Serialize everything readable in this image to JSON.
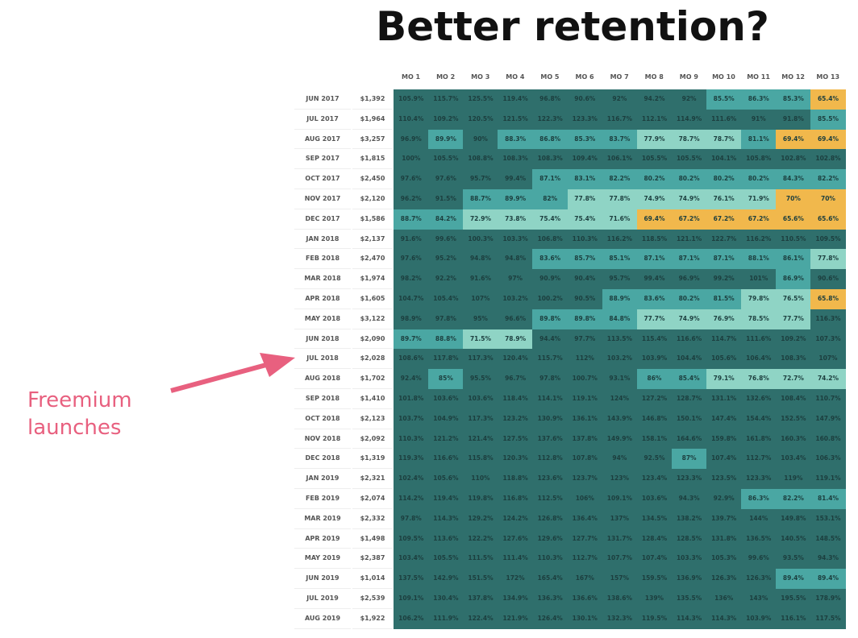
{
  "title": "Better retention?",
  "annotation": {
    "line1": "Freemium",
    "line2": "launches",
    "color": "#e8607f"
  },
  "colors": {
    "high": "#2f6f6c",
    "mid": "#4aa7a3",
    "low": "#8fd4c5",
    "lowest": "#f1b84c"
  },
  "chart_data": {
    "type": "heatmap",
    "title": "Better retention?",
    "columns": [
      "MO 1",
      "MO 2",
      "MO 3",
      "MO 4",
      "MO 5",
      "MO 6",
      "MO 7",
      "MO 8",
      "MO 9",
      "MO 10",
      "MO 11",
      "MO 12",
      "MO 13"
    ],
    "rows": [
      {
        "cohort": "JUN 2017",
        "revenue": "$1,392",
        "values": [
          "105.9%",
          "115.7%",
          "125.5%",
          "119.4%",
          "96.8%",
          "90.6%",
          "92%",
          "94.2%",
          "92%",
          "85.5%",
          "86.3%",
          "85.3%",
          "65.4%"
        ]
      },
      {
        "cohort": "JUL 2017",
        "revenue": "$1,964",
        "values": [
          "110.4%",
          "109.2%",
          "120.5%",
          "121.5%",
          "122.3%",
          "123.3%",
          "116.7%",
          "112.1%",
          "114.9%",
          "111.6%",
          "91%",
          "91.8%",
          "85.5%"
        ]
      },
      {
        "cohort": "AUG 2017",
        "revenue": "$3,257",
        "values": [
          "96.9%",
          "89.9%",
          "90%",
          "88.3%",
          "86.8%",
          "85.3%",
          "83.7%",
          "77.9%",
          "78.7%",
          "78.7%",
          "81.1%",
          "69.4%",
          "69.4%"
        ]
      },
      {
        "cohort": "SEP 2017",
        "revenue": "$1,815",
        "values": [
          "100%",
          "105.5%",
          "108.8%",
          "108.3%",
          "108.3%",
          "109.4%",
          "106.1%",
          "105.5%",
          "105.5%",
          "104.1%",
          "105.8%",
          "102.8%",
          "102.8%"
        ]
      },
      {
        "cohort": "OCT 2017",
        "revenue": "$2,450",
        "values": [
          "97.6%",
          "97.6%",
          "95.7%",
          "99.4%",
          "87.1%",
          "83.1%",
          "82.2%",
          "80.2%",
          "80.2%",
          "80.2%",
          "80.2%",
          "84.3%",
          "82.2%"
        ]
      },
      {
        "cohort": "NOV 2017",
        "revenue": "$2,120",
        "values": [
          "96.2%",
          "91.5%",
          "88.7%",
          "89.9%",
          "82%",
          "77.8%",
          "77.8%",
          "74.9%",
          "74.9%",
          "76.1%",
          "71.9%",
          "70%",
          "70%"
        ]
      },
      {
        "cohort": "DEC 2017",
        "revenue": "$1,586",
        "values": [
          "88.7%",
          "84.2%",
          "72.9%",
          "73.8%",
          "75.4%",
          "75.4%",
          "71.6%",
          "69.4%",
          "67.2%",
          "67.2%",
          "67.2%",
          "65.6%",
          "65.6%"
        ]
      },
      {
        "cohort": "JAN 2018",
        "revenue": "$2,137",
        "values": [
          "91.6%",
          "99.6%",
          "100.3%",
          "103.3%",
          "106.8%",
          "110.3%",
          "116.2%",
          "118.5%",
          "121.1%",
          "122.7%",
          "116.2%",
          "110.5%",
          "109.5%"
        ]
      },
      {
        "cohort": "FEB 2018",
        "revenue": "$2,470",
        "values": [
          "97.6%",
          "95.2%",
          "94.8%",
          "94.8%",
          "83.6%",
          "85.7%",
          "85.1%",
          "87.1%",
          "87.1%",
          "87.1%",
          "88.1%",
          "86.1%",
          "77.8%"
        ]
      },
      {
        "cohort": "MAR 2018",
        "revenue": "$1,974",
        "values": [
          "98.2%",
          "92.2%",
          "91.6%",
          "97%",
          "90.9%",
          "90.4%",
          "95.7%",
          "99.4%",
          "96.9%",
          "99.2%",
          "101%",
          "86.9%",
          "90.6%"
        ]
      },
      {
        "cohort": "APR 2018",
        "revenue": "$1,605",
        "values": [
          "104.7%",
          "105.4%",
          "107%",
          "103.2%",
          "100.2%",
          "90.5%",
          "88.9%",
          "83.6%",
          "80.2%",
          "81.5%",
          "79.8%",
          "76.5%",
          "65.8%"
        ]
      },
      {
        "cohort": "MAY 2018",
        "revenue": "$3,122",
        "values": [
          "98.9%",
          "97.8%",
          "95%",
          "96.6%",
          "89.8%",
          "89.8%",
          "84.8%",
          "77.7%",
          "74.9%",
          "76.9%",
          "78.5%",
          "77.7%",
          "116.3%"
        ]
      },
      {
        "cohort": "JUN 2018",
        "revenue": "$2,090",
        "values": [
          "89.7%",
          "88.8%",
          "71.5%",
          "78.9%",
          "94.4%",
          "97.7%",
          "113.5%",
          "115.4%",
          "116.6%",
          "114.7%",
          "111.6%",
          "109.2%",
          "107.3%"
        ]
      },
      {
        "cohort": "JUL 2018",
        "revenue": "$2,028",
        "values": [
          "108.6%",
          "117.8%",
          "117.3%",
          "120.4%",
          "115.7%",
          "112%",
          "103.2%",
          "103.9%",
          "104.4%",
          "105.6%",
          "106.4%",
          "108.3%",
          "107%"
        ]
      },
      {
        "cohort": "AUG 2018",
        "revenue": "$1,702",
        "values": [
          "92.4%",
          "85%",
          "95.5%",
          "96.7%",
          "97.8%",
          "100.7%",
          "93.1%",
          "86%",
          "85.4%",
          "79.1%",
          "76.8%",
          "72.7%",
          "74.2%"
        ]
      },
      {
        "cohort": "SEP 2018",
        "revenue": "$1,410",
        "values": [
          "101.8%",
          "103.6%",
          "103.6%",
          "118.4%",
          "114.1%",
          "119.1%",
          "124%",
          "127.2%",
          "128.7%",
          "131.1%",
          "132.6%",
          "108.4%",
          "110.7%"
        ]
      },
      {
        "cohort": "OCT 2018",
        "revenue": "$2,123",
        "values": [
          "103.7%",
          "104.9%",
          "117.3%",
          "123.2%",
          "130.9%",
          "136.1%",
          "143.9%",
          "146.8%",
          "150.1%",
          "147.4%",
          "154.4%",
          "152.5%",
          "147.9%"
        ]
      },
      {
        "cohort": "NOV 2018",
        "revenue": "$2,092",
        "values": [
          "110.3%",
          "121.2%",
          "121.4%",
          "127.5%",
          "137.6%",
          "137.8%",
          "149.9%",
          "158.1%",
          "164.6%",
          "159.8%",
          "161.8%",
          "160.3%",
          "160.8%"
        ]
      },
      {
        "cohort": "DEC 2018",
        "revenue": "$1,319",
        "values": [
          "119.3%",
          "116.6%",
          "115.8%",
          "120.3%",
          "112.8%",
          "107.8%",
          "94%",
          "92.5%",
          "87%",
          "107.4%",
          "112.7%",
          "103.4%",
          "106.3%"
        ]
      },
      {
        "cohort": "JAN 2019",
        "revenue": "$2,321",
        "values": [
          "102.4%",
          "105.6%",
          "110%",
          "118.8%",
          "123.6%",
          "123.7%",
          "123%",
          "123.4%",
          "123.3%",
          "123.5%",
          "123.3%",
          "119%",
          "119.1%"
        ]
      },
      {
        "cohort": "FEB 2019",
        "revenue": "$2,074",
        "values": [
          "114.2%",
          "119.4%",
          "119.8%",
          "116.8%",
          "112.5%",
          "106%",
          "109.1%",
          "103.6%",
          "94.3%",
          "92.9%",
          "86.3%",
          "82.2%",
          "81.4%"
        ]
      },
      {
        "cohort": "MAR 2019",
        "revenue": "$2,332",
        "values": [
          "97.8%",
          "114.3%",
          "129.2%",
          "124.2%",
          "126.8%",
          "136.4%",
          "137%",
          "134.5%",
          "138.2%",
          "139.7%",
          "144%",
          "149.8%",
          "153.1%"
        ]
      },
      {
        "cohort": "APR 2019",
        "revenue": "$1,498",
        "values": [
          "109.5%",
          "113.6%",
          "122.2%",
          "127.6%",
          "129.6%",
          "127.7%",
          "131.7%",
          "128.4%",
          "128.5%",
          "131.8%",
          "136.5%",
          "140.5%",
          "148.5%"
        ]
      },
      {
        "cohort": "MAY 2019",
        "revenue": "$2,387",
        "values": [
          "103.4%",
          "105.5%",
          "111.5%",
          "111.4%",
          "110.3%",
          "112.7%",
          "107.7%",
          "107.4%",
          "103.3%",
          "105.3%",
          "99.6%",
          "93.5%",
          "94.3%"
        ]
      },
      {
        "cohort": "JUN 2019",
        "revenue": "$1,014",
        "values": [
          "137.5%",
          "142.9%",
          "151.5%",
          "172%",
          "165.4%",
          "167%",
          "157%",
          "159.5%",
          "136.9%",
          "126.3%",
          "126.3%",
          "89.4%",
          "89.4%"
        ]
      },
      {
        "cohort": "JUL 2019",
        "revenue": "$2,539",
        "values": [
          "109.1%",
          "130.4%",
          "137.8%",
          "134.9%",
          "136.3%",
          "136.6%",
          "138.6%",
          "139%",
          "135.5%",
          "136%",
          "143%",
          "195.5%",
          "178.9%"
        ]
      },
      {
        "cohort": "AUG 2019",
        "revenue": "$1,922",
        "values": [
          "106.2%",
          "111.9%",
          "122.4%",
          "121.9%",
          "126.4%",
          "130.1%",
          "132.3%",
          "119.5%",
          "114.3%",
          "114.3%",
          "103.9%",
          "116.1%",
          "117.5%"
        ]
      }
    ]
  }
}
